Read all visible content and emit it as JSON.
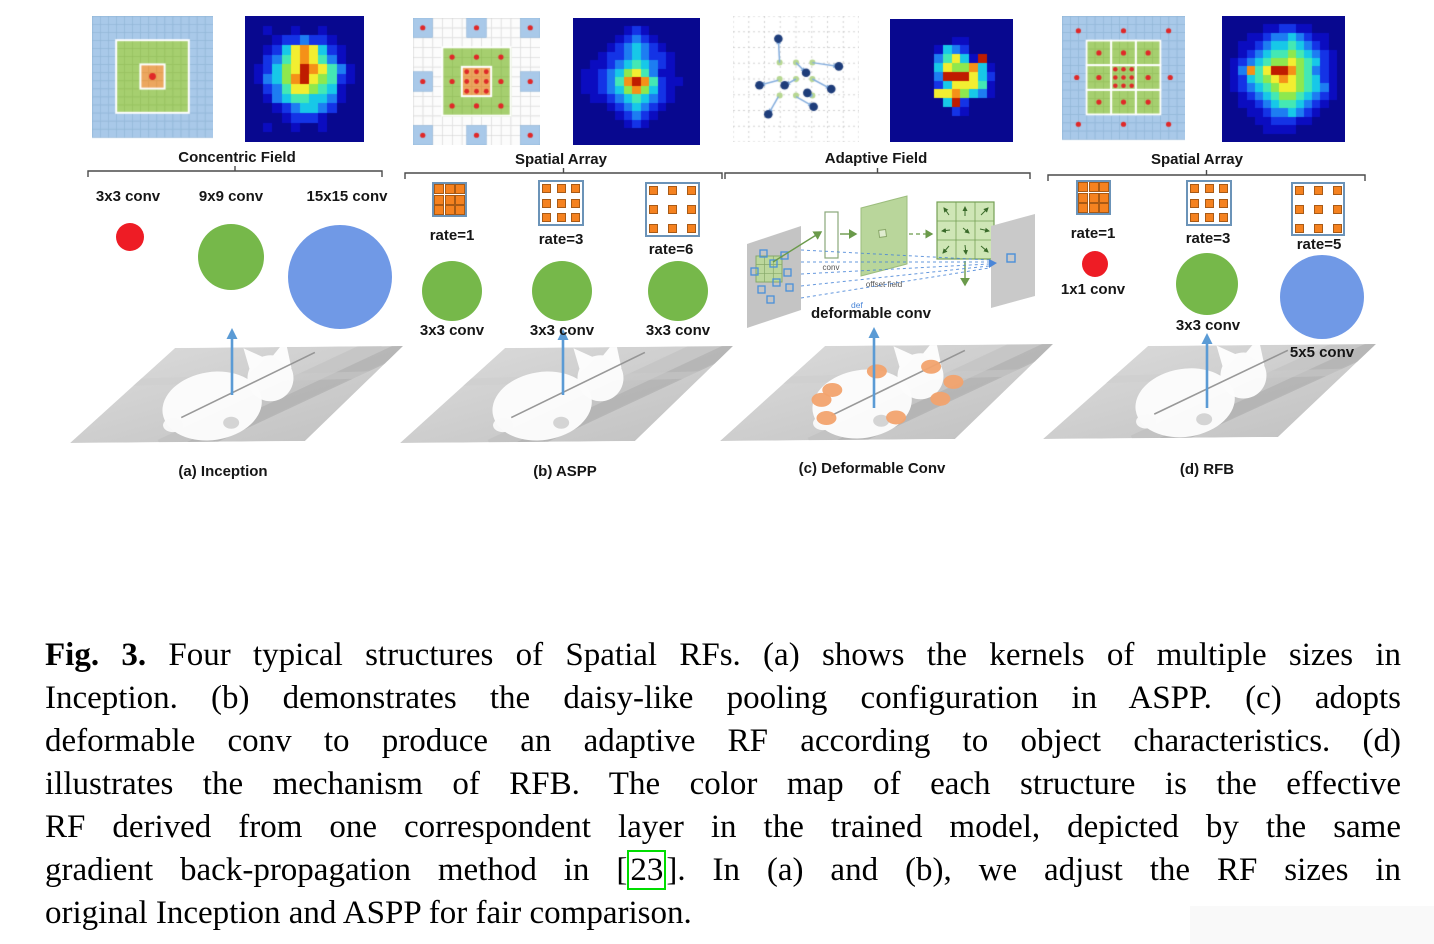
{
  "panels": [
    {
      "id": "a",
      "caption": "(a) Inception",
      "field_label": "Concentric Field",
      "kernel_labels": [
        "3x3 conv",
        "9x9 conv",
        "15x15 conv"
      ],
      "circles": [
        {
          "label": "3x3 conv",
          "color": "#ee1c25"
        },
        {
          "label": "9x9 conv",
          "color": "#76b84a"
        },
        {
          "label": "15x15 conv",
          "color": "#7099e6"
        }
      ],
      "heatmap_rows": [
        "0000000000000",
        "0010010010000",
        "0001223221000",
        "0012478742100",
        "0023578753100",
        "0124679875310",
        "0134689765210",
        "0023577654100",
        "0013455443100",
        "0001234432000",
        "0000122210000",
        "0010010010000",
        "0000000000000"
      ]
    },
    {
      "id": "b",
      "caption": "(b) ASPP",
      "field_label": "Spatial Array",
      "rate_labels": [
        "rate=1",
        "rate=3",
        "rate=6"
      ],
      "circle_labels": [
        "3x3 conv",
        "3x3 conv",
        "3x3 conv"
      ],
      "circles": [
        {
          "color": "#76b84a"
        },
        {
          "color": "#76b84a"
        },
        {
          "color": "#76b84a"
        }
      ],
      "heatmap_rows": [
        "000000000000000",
        "000000121000000",
        "000001232100000",
        "000012343210000",
        "000122343221000",
        "001123454321000",
        "011234675311000",
        "011235898521100",
        "011234686421000",
        "001123454321000",
        "000012343210000",
        "000001232100000",
        "000000121000000",
        "000000000000000",
        "000000000000000"
      ]
    },
    {
      "id": "c",
      "caption": "(c) Deformable Conv",
      "field_label": "Adaptive Field",
      "diagram": {
        "conv": "conv",
        "offset_field": "offset field",
        "def": "def",
        "title": "deformable conv"
      },
      "heatmap_rows": [
        "00000000000000",
        "00000000000000",
        "00000001100000",
        "00000143200000",
        "00000357419000",
        "00000476684100",
        "00000399974200",
        "00000247775100",
        "00000778643100",
        "00000049200000",
        "00000002100000",
        "00000000000000",
        "00000000000000",
        "00000000000000"
      ]
    },
    {
      "id": "d",
      "caption": "(d) RFB",
      "field_label": "Spatial Array",
      "rate_labels": [
        "rate=1",
        "rate=3",
        "rate=5"
      ],
      "circle_labels": [
        "1x1 conv",
        "3x3 conv",
        "5x5 conv"
      ],
      "circles": [
        {
          "color": "#ee1c25"
        },
        {
          "color": "#76b84a"
        },
        {
          "color": "#7099e6"
        }
      ],
      "heatmap_rows": [
        "000000000000000",
        "000001122110000",
        "000112334321100",
        "001123445432100",
        "001234556543210",
        "012345667654210",
        "013857998653210",
        "012456787654210",
        "012345677654310",
        "001234566543210",
        "001123455432100",
        "000112334321000",
        "000011222110000",
        "000001111000000",
        "000000000000000"
      ]
    }
  ],
  "heatmap_palette": [
    "#08088f",
    "#0b0cc0",
    "#1433e6",
    "#1d7df2",
    "#17c8e8",
    "#44e8b4",
    "#8ee84e",
    "#f2ee31",
    "#f59118",
    "#bf1c00"
  ],
  "colors": {
    "grid_blue_cell": "#a9c9e9",
    "grid_blue_line": "#8fb5d5",
    "grid_green": "#a6cf6f",
    "grid_green_line": "#95bf5e",
    "grid_orange": "#eca75f",
    "grid_orange_line": "#dc9a50",
    "grid_white_bg": "#fcfcfc",
    "grid_gray_line": "#d6d6d6",
    "dot_red": "#e02828",
    "offset_green_dot": "#b7d791",
    "offset_navy_dot": "#1e3d7a",
    "offset_arrow": "#85aede",
    "kernel_square": "#f58220",
    "kernel_square_border": "#a85a16",
    "kernel_frame": "#6b93b8",
    "arrow_blue": "#5b9bd5",
    "bracket_gray": "#4a4a4a",
    "plane_light": "#dcdcdc",
    "plane_dark": "#c0c0c0",
    "plane_dot_orange": "#f2a36e",
    "citation_green": "#00dd00"
  },
  "caption": {
    "lines": [
      {
        "bold": "Fig. 3.",
        "text": " Four typical structures of Spatial RFs. (a) shows the kernels of multiple sizes in"
      },
      {
        "text": "Inception. (b) demonstrates the daisy-like pooling configuration in ASPP. (c) adopts"
      },
      {
        "text": "deformable conv to produce an adaptive RF according to object characteristics. (d)"
      },
      {
        "text": "illustrates the mechanism of RFB. The color map of each structure is the effective"
      },
      {
        "text": "RF derived from one correspondent layer in the trained model, depicted by the same"
      },
      {
        "pre": "gradient back-propagation method in [",
        "cite": "23",
        "post": "]. In (a) and (b), we adjust the RF sizes in"
      },
      {
        "text": "original Inception and ASPP for fair comparison.",
        "last": true
      }
    ]
  }
}
